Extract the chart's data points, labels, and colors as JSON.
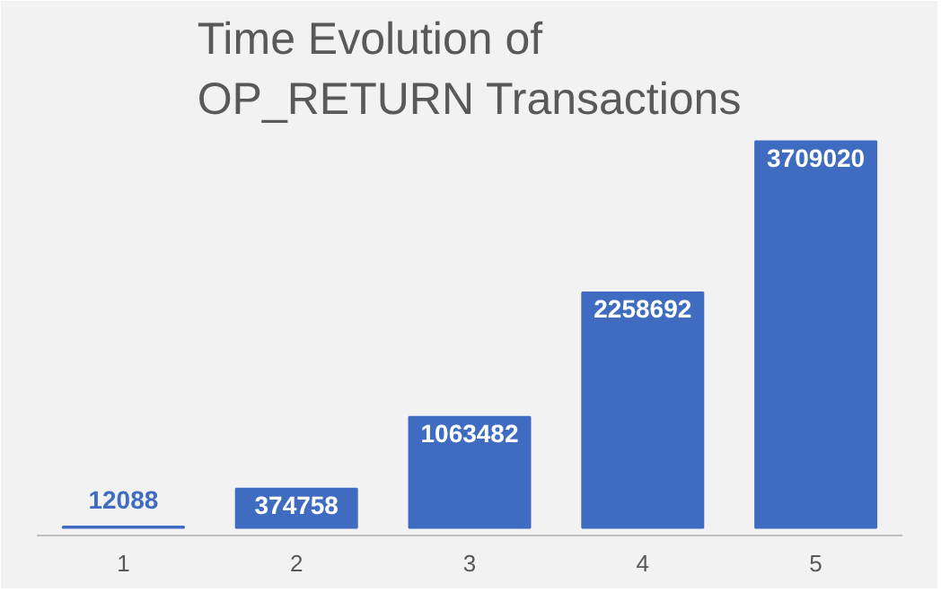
{
  "chart_data": {
    "type": "bar",
    "title": "Time Evolution of\nOP_RETURN Transactions",
    "categories": [
      "1",
      "2",
      "3",
      "4",
      "5"
    ],
    "values": [
      12088,
      374758,
      1063482,
      2258692,
      3709020
    ],
    "color": "#3f6cc0",
    "data_labels": true,
    "grid": false
  }
}
